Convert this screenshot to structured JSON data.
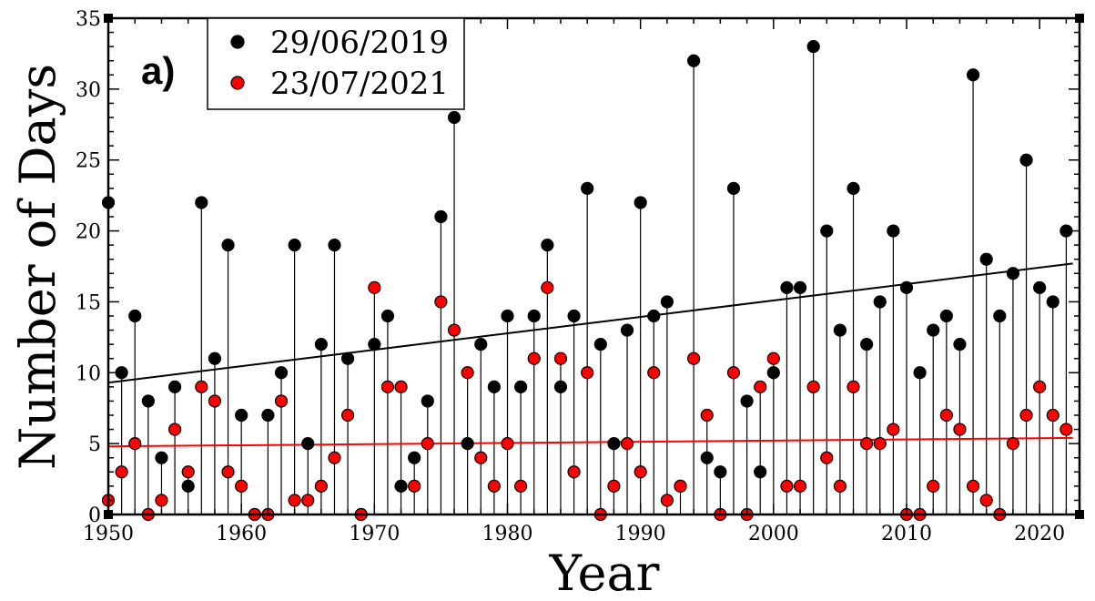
{
  "chart_data": {
    "type": "scatter",
    "panel_label": "a)",
    "xlabel": "Year",
    "ylabel": "Number of Days",
    "xlim": [
      1950,
      2023
    ],
    "ylim": [
      0,
      35
    ],
    "xticks": [
      1950,
      1960,
      1970,
      1980,
      1990,
      2000,
      2010,
      2020
    ],
    "yticks": [
      0,
      5,
      10,
      15,
      20,
      25,
      30,
      35
    ],
    "legend_position": "top-left",
    "grid": false,
    "x": [
      1950,
      1951,
      1952,
      1953,
      1954,
      1955,
      1956,
      1957,
      1958,
      1959,
      1960,
      1961,
      1962,
      1963,
      1964,
      1965,
      1966,
      1967,
      1968,
      1969,
      1970,
      1971,
      1972,
      1973,
      1974,
      1975,
      1976,
      1977,
      1978,
      1979,
      1980,
      1981,
      1982,
      1983,
      1984,
      1985,
      1986,
      1987,
      1988,
      1989,
      1990,
      1991,
      1992,
      1993,
      1994,
      1995,
      1996,
      1997,
      1998,
      1999,
      2000,
      2001,
      2002,
      2003,
      2004,
      2005,
      2006,
      2007,
      2008,
      2009,
      2010,
      2011,
      2012,
      2013,
      2014,
      2015,
      2016,
      2017,
      2018,
      2019,
      2020,
      2021,
      2022
    ],
    "series": [
      {
        "name": "29/06/2019",
        "color": "#000000",
        "values": [
          22,
          10,
          14,
          8,
          4,
          9,
          2,
          22,
          11,
          19,
          7,
          0,
          7,
          10,
          19,
          5,
          12,
          19,
          11,
          0,
          12,
          14,
          2,
          4,
          8,
          21,
          28,
          5,
          12,
          9,
          14,
          9,
          14,
          19,
          9,
          14,
          23,
          12,
          5,
          13,
          22,
          14,
          15,
          2,
          32,
          4,
          3,
          23,
          8,
          3,
          10,
          16,
          16,
          33,
          20,
          13,
          23,
          12,
          15,
          20,
          16,
          10,
          13,
          14,
          12,
          31,
          18,
          14,
          17,
          25,
          16,
          15,
          20
        ],
        "trend": [
          9.3,
          17.7
        ]
      },
      {
        "name": "23/07/2021",
        "color": "#ff0000",
        "values": [
          1,
          3,
          5,
          0,
          1,
          6,
          3,
          9,
          8,
          3,
          2,
          0,
          0,
          8,
          1,
          1,
          2,
          4,
          7,
          0,
          16,
          9,
          9,
          2,
          5,
          15,
          13,
          10,
          4,
          2,
          5,
          2,
          11,
          16,
          11,
          3,
          10,
          0,
          2,
          5,
          3,
          10,
          1,
          2,
          11,
          7,
          0,
          10,
          0,
          9,
          11,
          2,
          2,
          9,
          4,
          2,
          9,
          5,
          5,
          6,
          0,
          0,
          2,
          7,
          6,
          2,
          1,
          0,
          5,
          7,
          9,
          7,
          6
        ],
        "trend": [
          4.8,
          5.4
        ]
      }
    ]
  }
}
